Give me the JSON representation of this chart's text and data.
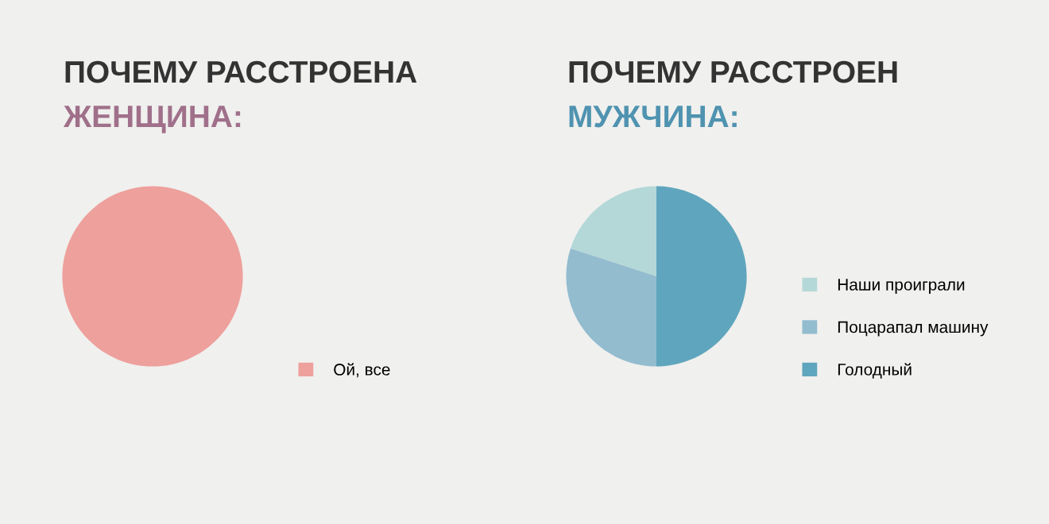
{
  "chart_data": [
    {
      "type": "pie",
      "title": "ПОЧЕМУ РАССТРОЕНА",
      "subtitle": "ЖЕНЩИНА:",
      "categories": [
        "Ой, все"
      ],
      "values": [
        100
      ],
      "colors": [
        "#eea09c"
      ],
      "legend": "right"
    },
    {
      "type": "pie",
      "title": "ПОЧЕМУ РАССТРОЕН",
      "subtitle": "МУЖЧИНА:",
      "categories": [
        "Наши проиграли",
        "Поцарапал машину",
        "Голодный"
      ],
      "values": [
        20,
        30,
        50
      ],
      "colors": [
        "#b4d8d8",
        "#93bccf",
        "#5fa5bd"
      ],
      "legend": "right"
    }
  ]
}
